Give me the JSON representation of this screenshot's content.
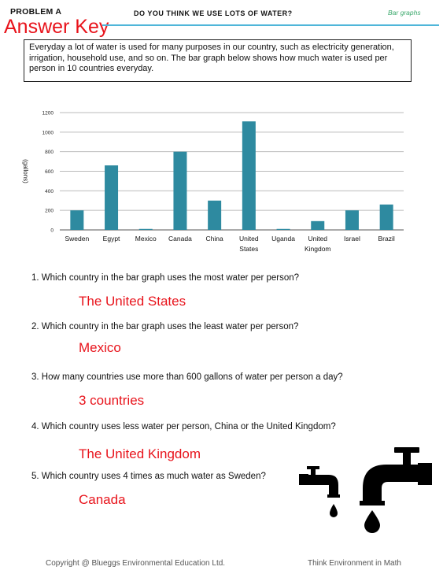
{
  "header": {
    "problem_label": "PROBLEM A",
    "answer_key": "Answer Key",
    "title": "DO YOU THINK WE USE LOTS OF WATER?",
    "tag": "Bar graphs"
  },
  "intro": "Everyday a lot of water is used for many purposes in our country, such as electricity generation, irrigation, household use, and so on. The bar graph below shows how much water is used per person in 10 countries everyday.",
  "chart_data": {
    "type": "bar",
    "categories": [
      "Sweden",
      "Egypt",
      "Mexico",
      "Canada",
      "China",
      "United States",
      "Uganda",
      "United Kingdom",
      "Israel",
      "Brazil"
    ],
    "category_lines": [
      [
        "Sweden"
      ],
      [
        "Egypt"
      ],
      [
        "Mexico"
      ],
      [
        "Canada"
      ],
      [
        "China"
      ],
      [
        "United",
        "States"
      ],
      [
        "Uganda"
      ],
      [
        "United",
        "Kingdom"
      ],
      [
        "Israel"
      ],
      [
        "Brazil"
      ]
    ],
    "values": [
      200,
      660,
      10,
      800,
      300,
      1110,
      10,
      90,
      200,
      260
    ],
    "ylabel": "(gallons)",
    "ylim": [
      0,
      1200
    ],
    "yticks": [
      0,
      200,
      400,
      600,
      800,
      1000,
      1200
    ],
    "grid": true,
    "bar_color": "#2e8aa0"
  },
  "questions": [
    {
      "q": "1. Which country in the bar graph uses the most water per person?",
      "a": "The United States"
    },
    {
      "q": "2. Which country in the bar graph uses the least water per person?",
      "a": "Mexico"
    },
    {
      "q": "3. How many countries use more than 600 gallons of water per person a day?",
      "a": "3 countries"
    },
    {
      "q": "4. Which country uses less water per person, China or the United Kingdom?",
      "a": "The United Kingdom"
    },
    {
      "q": "5. Which country uses 4 times as much water as Sweden?",
      "a": "Canada"
    }
  ],
  "footer": {
    "left": "Copyright @ Blueggs Environmental Education Ltd.",
    "right": "Think Environment in Math"
  }
}
